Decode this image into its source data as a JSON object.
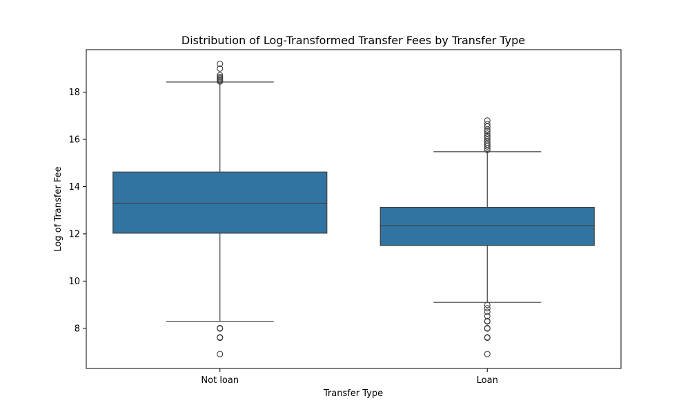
{
  "chart_data": {
    "type": "box",
    "title": "Distribution of Log-Transformed Transfer Fees by Transfer Type",
    "xlabel": "Transfer Type",
    "ylabel": "Log of Transfer Fee",
    "categories": [
      "Not loan",
      "Loan"
    ],
    "ylim": [
      6.3,
      19.8
    ],
    "yticks": [
      8,
      10,
      12,
      14,
      16,
      18
    ],
    "grid": false,
    "box_color": "#3274a1",
    "edge_color": "#3f3f3f",
    "boxes": [
      {
        "category": "Not loan",
        "whisker_low": 8.3,
        "q1": 12.03,
        "median": 13.3,
        "q3": 14.62,
        "whisker_high": 18.43,
        "outliers": [
          6.91,
          7.6,
          7.62,
          7.99,
          8.01,
          18.45,
          18.5,
          18.55,
          18.6,
          18.65,
          18.72,
          19.0,
          19.2
        ]
      },
      {
        "category": "Loan",
        "whisker_low": 9.1,
        "q1": 11.51,
        "median": 12.35,
        "q3": 13.12,
        "whisker_high": 15.48,
        "outliers": [
          6.91,
          7.6,
          7.62,
          7.99,
          8.01,
          8.29,
          8.31,
          8.52,
          8.7,
          8.85,
          8.99,
          15.55,
          15.62,
          15.7,
          15.78,
          15.85,
          15.93,
          16.0,
          16.08,
          16.15,
          16.25,
          16.35,
          16.42,
          16.55,
          16.65,
          16.8
        ]
      }
    ]
  }
}
